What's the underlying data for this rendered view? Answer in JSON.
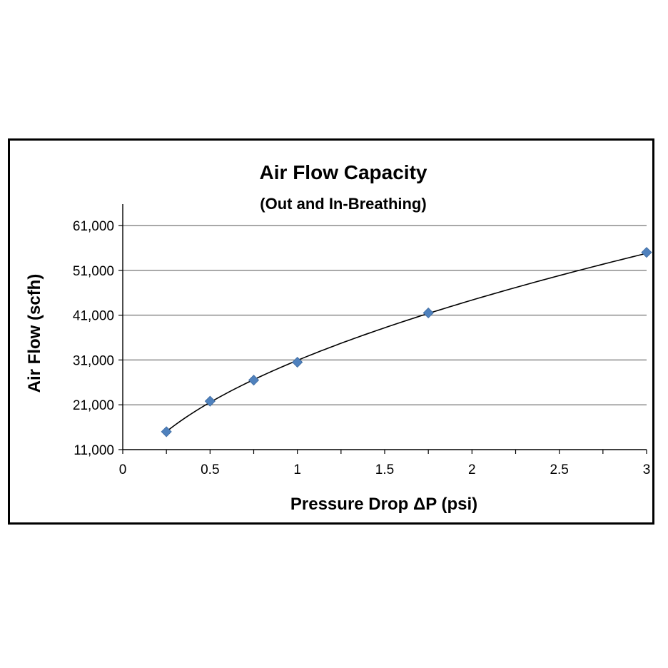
{
  "chart_data": {
    "type": "scatter",
    "title": "Air Flow Capacity",
    "subtitle": "(Out and In-Breathing)",
    "xlabel": "Pressure Drop ΔP (psi)",
    "ylabel": "Air Flow (scfh)",
    "xlim": [
      0,
      3
    ],
    "ylim": [
      11000,
      61000
    ],
    "x_ticks": [
      {
        "value": 0,
        "label": "0"
      },
      {
        "value": 0.5,
        "label": "0.5"
      },
      {
        "value": 1,
        "label": "1"
      },
      {
        "value": 1.5,
        "label": "1.5"
      },
      {
        "value": 2,
        "label": "2"
      },
      {
        "value": 2.5,
        "label": "2.5"
      },
      {
        "value": 3,
        "label": "3"
      }
    ],
    "y_ticks": [
      {
        "value": 11000,
        "label": "11,000"
      },
      {
        "value": 21000,
        "label": "21,000"
      },
      {
        "value": 31000,
        "label": "31,000"
      },
      {
        "value": 41000,
        "label": "41,000"
      },
      {
        "value": 51000,
        "label": "51,000"
      },
      {
        "value": 61000,
        "label": "61,000"
      }
    ],
    "grid": "horizontal",
    "legend": "none",
    "marker": "diamond",
    "marker_color": "#4F81BD",
    "trendline": {
      "type": "power",
      "color": "#000000"
    },
    "points": [
      {
        "x": 0.25,
        "y": 15000
      },
      {
        "x": 0.5,
        "y": 21800
      },
      {
        "x": 0.75,
        "y": 26500
      },
      {
        "x": 1.0,
        "y": 30500
      },
      {
        "x": 1.75,
        "y": 41500
      },
      {
        "x": 3.0,
        "y": 55000
      }
    ]
  }
}
